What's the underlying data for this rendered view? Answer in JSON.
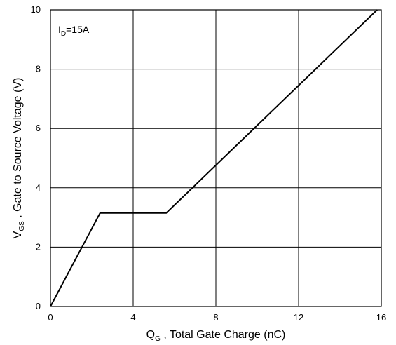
{
  "chart_data": {
    "type": "line",
    "x_axis": {
      "label_main": "Q",
      "label_sub": "G",
      "label_rest": " , Total Gate Charge (nC)",
      "range": [
        0,
        16
      ],
      "ticks": [
        0,
        4,
        8,
        12,
        16
      ]
    },
    "y_axis": {
      "label_main": "V",
      "label_sub": "GS",
      "label_rest": " , Gate to Source Voltage (V)",
      "range": [
        0,
        10
      ],
      "ticks": [
        0,
        2,
        4,
        6,
        8,
        10
      ]
    },
    "grid": true,
    "annotation": {
      "main": "I",
      "sub": "D",
      "rest": "=15A"
    },
    "series": [
      {
        "x": [
          0,
          2.4,
          5.6,
          15.8
        ],
        "y": [
          0,
          3.15,
          3.15,
          10
        ]
      }
    ],
    "colors": {
      "line": "#000000",
      "grid": "#000000",
      "background": "#ffffff"
    }
  }
}
